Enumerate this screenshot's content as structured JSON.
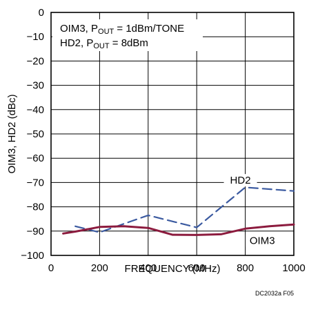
{
  "chart_data": {
    "type": "line",
    "title": "",
    "xlabel": "FREQUENCY (MHz)",
    "ylabel": "OIM3, HD2 (dBc)",
    "xlim": [
      0,
      1000
    ],
    "ylim": [
      -100,
      0
    ],
    "x_ticks": [
      0,
      200,
      400,
      600,
      800,
      1000
    ],
    "y_ticks": [
      0,
      -10,
      -20,
      -30,
      -40,
      -50,
      -60,
      -70,
      -80,
      -90,
      -100
    ],
    "x_tick_labels": [
      "0",
      "200",
      "400",
      "600",
      "800",
      "1000"
    ],
    "y_tick_labels": [
      "0",
      "−10",
      "−20",
      "−30",
      "−40",
      "−50",
      "−60",
      "−70",
      "−80",
      "−90",
      "−100"
    ],
    "grid": true,
    "legend_box": {
      "line1_main": "OIM3, P",
      "line1_sub": "OUT",
      "line1_rest": " = 1dBm/TONE",
      "line2_main": "HD2, P",
      "line2_sub": "OUT",
      "line2_rest": " = 8dBm"
    },
    "series": [
      {
        "name": "HD2",
        "color": "#3b5aa0",
        "style": "dashed",
        "x": [
          100,
          200,
          400,
          600,
          800,
          1000
        ],
        "y": [
          -88,
          -90.5,
          -83.5,
          -88.5,
          -72,
          -73.5
        ],
        "label_x": 780,
        "label_y": -70.5
      },
      {
        "name": "OIM3",
        "color": "#8c1b3e",
        "style": "solid",
        "x": [
          50,
          100,
          200,
          300,
          400,
          500,
          600,
          700,
          800,
          900,
          1000
        ],
        "y": [
          -91,
          -90.2,
          -88.3,
          -88,
          -88.7,
          -91.5,
          -91.6,
          -91.3,
          -89,
          -88,
          -87.3
        ],
        "label_x": 870,
        "label_y": -95.3
      }
    ],
    "footnote": "DC2032a F05"
  }
}
